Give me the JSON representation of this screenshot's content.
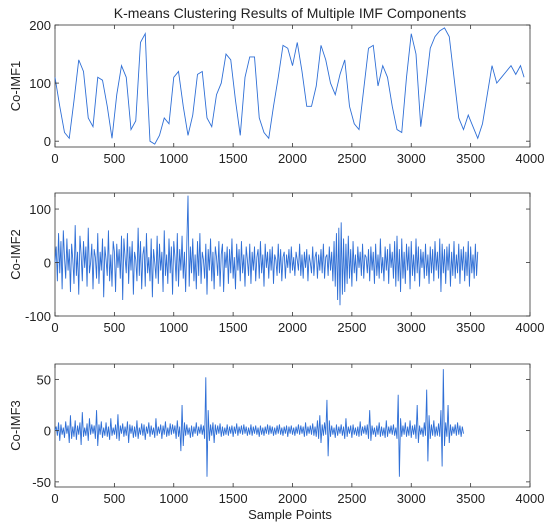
{
  "chart_data": [
    {
      "type": "line",
      "title": "K-means Clustering Results of Multiple IMF Components",
      "xlabel": "",
      "ylabel": "Co-IMF1",
      "xlim": [
        0,
        4000
      ],
      "ylim": [
        -10,
        200
      ],
      "xticks": [
        "0",
        "500",
        "1000",
        "1500",
        "2000",
        "2500",
        "3000",
        "3500",
        "4000"
      ],
      "yticks": [
        "0",
        "100",
        "200"
      ],
      "line_color": "#2f6fd6",
      "grid": false,
      "x": [
        0,
        40,
        80,
        120,
        160,
        200,
        240,
        280,
        320,
        360,
        400,
        440,
        480,
        520,
        560,
        600,
        640,
        680,
        720,
        760,
        780,
        800,
        840,
        880,
        920,
        960,
        1000,
        1040,
        1080,
        1120,
        1160,
        1200,
        1240,
        1280,
        1320,
        1360,
        1400,
        1440,
        1480,
        1520,
        1560,
        1600,
        1640,
        1680,
        1720,
        1760,
        1800,
        1840,
        1880,
        1920,
        1960,
        2000,
        2040,
        2080,
        2120,
        2160,
        2200,
        2240,
        2280,
        2320,
        2360,
        2400,
        2440,
        2480,
        2520,
        2560,
        2600,
        2640,
        2680,
        2720,
        2760,
        2800,
        2840,
        2880,
        2920,
        2960,
        3000,
        3040,
        3080,
        3120,
        3160,
        3200,
        3240,
        3280,
        3320,
        3360,
        3400,
        3440,
        3480,
        3520,
        3560,
        3600,
        3640,
        3680,
        3720,
        3760,
        3800,
        3840,
        3880,
        3920,
        3950
      ],
      "values": [
        110,
        60,
        15,
        5,
        70,
        140,
        120,
        40,
        25,
        110,
        105,
        60,
        5,
        80,
        130,
        110,
        20,
        35,
        170,
        185,
        80,
        0,
        -5,
        10,
        40,
        30,
        110,
        120,
        60,
        10,
        45,
        115,
        120,
        40,
        25,
        80,
        100,
        150,
        140,
        70,
        10,
        110,
        145,
        145,
        40,
        15,
        5,
        60,
        110,
        165,
        160,
        130,
        170,
        120,
        60,
        60,
        95,
        165,
        140,
        100,
        80,
        115,
        140,
        60,
        30,
        20,
        90,
        160,
        165,
        95,
        130,
        110,
        60,
        20,
        15,
        110,
        185,
        150,
        25,
        90,
        160,
        180,
        190,
        195,
        180,
        110,
        40,
        20,
        45,
        25,
        5,
        30,
        80,
        130,
        100,
        110,
        120,
        130,
        115,
        130,
        110
      ]
    },
    {
      "type": "line",
      "title": "",
      "xlabel": "",
      "ylabel": "Co-IMF2",
      "xlim": [
        0,
        4000
      ],
      "ylim": [
        -100,
        130
      ],
      "xticks": [
        "0",
        "500",
        "1000",
        "1500",
        "2000",
        "2500",
        "3000",
        "3500",
        "4000"
      ],
      "yticks": [
        "-100",
        "0",
        "100"
      ],
      "line_color": "#2f6fd6",
      "grid": false,
      "x_step": 10,
      "values": [
        0,
        30,
        -35,
        55,
        -20,
        40,
        -50,
        60,
        10,
        -30,
        45,
        -15,
        25,
        -55,
        35,
        5,
        -40,
        70,
        -25,
        20,
        -60,
        50,
        15,
        -35,
        40,
        -10,
        30,
        -45,
        65,
        -20,
        0,
        35,
        -50,
        25,
        10,
        -30,
        55,
        -40,
        20,
        -15,
        45,
        -65,
        30,
        5,
        -25,
        60,
        -35,
        15,
        -45,
        40,
        20,
        -55,
        35,
        -10,
        25,
        -30,
        50,
        -70,
        45,
        10,
        -20,
        55,
        -40,
        30,
        -15,
        40,
        -60,
        20,
        5,
        -35,
        65,
        -25,
        40,
        -50,
        15,
        30,
        -45,
        55,
        -20,
        10,
        -35,
        45,
        -65,
        25,
        0,
        -30,
        50,
        -40,
        35,
        -15,
        20,
        -55,
        60,
        -25,
        15,
        -40,
        45,
        -20,
        30,
        -60,
        40,
        10,
        -35,
        55,
        -45,
        25,
        -15,
        50,
        -30,
        20,
        -55,
        35,
        125,
        -45,
        30,
        -20,
        45,
        -35,
        15,
        -50,
        40,
        -25,
        55,
        -40,
        20,
        5,
        -30,
        35,
        -60,
        25,
        -15,
        45,
        -35,
        20,
        -50,
        30,
        10,
        -25,
        40,
        -45,
        15,
        35,
        -55,
        20,
        -10,
        30,
        -40,
        25,
        -20,
        45,
        -30,
        10,
        -50,
        35,
        -15,
        25,
        -35,
        40,
        -20,
        15,
        -45,
        30,
        5,
        -25,
        35,
        -40,
        20,
        -15,
        30,
        -35,
        10,
        25,
        -30,
        40,
        -20,
        15,
        -45,
        35,
        -10,
        20,
        -30,
        25,
        -15,
        30,
        -40,
        15,
        5,
        -25,
        35,
        -20,
        25,
        -35,
        10,
        20,
        -30,
        15,
        -10,
        25,
        -20,
        30,
        -15,
        10,
        -25,
        20,
        5,
        -15,
        35,
        -25,
        15,
        -30,
        20,
        -10,
        25,
        -35,
        15,
        0,
        -20,
        30,
        -25,
        10,
        20,
        -30,
        15,
        -15,
        25,
        -20,
        35,
        -30,
        10,
        15,
        -25,
        30,
        -15,
        20,
        -35,
        40,
        -45,
        55,
        -70,
        65,
        -80,
        75,
        -60,
        45,
        -55,
        35,
        -40,
        50,
        -30,
        25,
        -45,
        40,
        -20,
        15,
        -35,
        30,
        -10,
        20,
        -25,
        35,
        -30,
        15,
        10,
        -20,
        25,
        -35,
        30,
        -15,
        20,
        -40,
        35,
        -25,
        15,
        -30,
        45,
        -20,
        10,
        -35,
        30,
        -15,
        25,
        -40,
        35,
        -10,
        20,
        -30,
        40,
        -45,
        50,
        -35,
        25,
        -55,
        45,
        -30,
        20,
        -40,
        35,
        -15,
        30,
        -50,
        40,
        -25,
        15,
        -35,
        45,
        -20,
        30,
        -45,
        25,
        -10,
        20,
        -30,
        35,
        -25,
        15,
        -40,
        30,
        -20,
        25,
        -35,
        40,
        -15,
        20,
        -30,
        45,
        -55,
        35,
        -20,
        25,
        -40,
        30,
        -15,
        35,
        -45,
        20,
        -25,
        40,
        -30,
        15,
        -20,
        35,
        -40,
        25,
        -15,
        30,
        -35,
        20,
        -25,
        40,
        -45,
        30,
        -20,
        15,
        -30,
        35,
        -25,
        20
      ]
    },
    {
      "type": "line",
      "title": "",
      "xlabel": "Sample Points",
      "ylabel": "Co-IMF3",
      "xlim": [
        0,
        4000
      ],
      "ylim": [
        -55,
        65
      ],
      "xticks": [
        "0",
        "500",
        "1000",
        "1500",
        "2000",
        "2500",
        "3000",
        "3500",
        "4000"
      ],
      "yticks": [
        "-50",
        "0",
        "50"
      ],
      "line_color": "#2f6fd6",
      "grid": false,
      "x_step": 10,
      "values": [
        0,
        4,
        -5,
        8,
        -10,
        6,
        -4,
        3,
        -7,
        9,
        -3,
        5,
        -12,
        15,
        -8,
        4,
        -6,
        10,
        -9,
        5,
        -4,
        8,
        -14,
        18,
        -6,
        3,
        -5,
        7,
        -10,
        12,
        -4,
        6,
        -3,
        5,
        -8,
        20,
        -15,
        6,
        -4,
        9,
        -7,
        3,
        -5,
        8,
        -6,
        4,
        -9,
        12,
        -5,
        3,
        -4,
        6,
        -8,
        16,
        -10,
        5,
        -3,
        7,
        -6,
        4,
        -5,
        9,
        -12,
        6,
        -3,
        5,
        -7,
        4,
        -6,
        10,
        -8,
        3,
        -4,
        7,
        -5,
        6,
        -9,
        4,
        -3,
        8,
        -6,
        5,
        -4,
        3,
        -7,
        12,
        -5,
        4,
        -3,
        6,
        -8,
        5,
        -4,
        9,
        -6,
        3,
        -5,
        7,
        -4,
        6,
        -3,
        5,
        -8,
        10,
        -6,
        4,
        -20,
        25,
        -15,
        8,
        -5,
        6,
        -4,
        3,
        -7,
        5,
        -6,
        4,
        -3,
        8,
        -5,
        4,
        -3,
        6,
        -4,
        5,
        -8,
        52,
        -45,
        20,
        -10,
        6,
        -5,
        8,
        -12,
        6,
        -4,
        5,
        -3,
        7,
        -6,
        4,
        -5,
        3,
        -4,
        6,
        -5,
        4,
        -3,
        5,
        -6,
        4,
        -3,
        7,
        -5,
        4,
        -3,
        5,
        -4,
        6,
        -3,
        4,
        -5,
        3,
        -4,
        6,
        -5,
        4,
        -3,
        5,
        -4,
        3,
        -6,
        5,
        -4,
        3,
        -5,
        4,
        -3,
        6,
        -4,
        5,
        -3,
        4,
        -5,
        3,
        -4,
        5,
        -3,
        6,
        -4,
        3,
        -5,
        4,
        -3,
        5,
        -6,
        4,
        -3,
        5,
        -4,
        3,
        -5,
        4,
        -3,
        6,
        -4,
        5,
        -3,
        4,
        -6,
        8,
        -5,
        4,
        -3,
        5,
        -4,
        7,
        -5,
        4,
        -6,
        10,
        -8,
        15,
        -12,
        6,
        -5,
        8,
        -4,
        30,
        -25,
        10,
        -6,
        5,
        -4,
        3,
        -7,
        6,
        -5,
        4,
        -3,
        6,
        -5,
        4,
        -8,
        12,
        -6,
        4,
        -3,
        5,
        -7,
        6,
        -4,
        3,
        -5,
        4,
        -6,
        9,
        -5,
        4,
        -3,
        5,
        -4,
        6,
        -8,
        20,
        -10,
        5,
        -4,
        3,
        -6,
        5,
        -4,
        8,
        -6,
        4,
        -5,
        3,
        -7,
        10,
        -6,
        4,
        -3,
        5,
        -4,
        6,
        -5,
        3,
        -8,
        35,
        -45,
        12,
        -6,
        5,
        -4,
        8,
        -6,
        4,
        -5,
        10,
        -7,
        5,
        -4,
        6,
        -8,
        25,
        -12,
        5,
        -4,
        3,
        -6,
        8,
        -5,
        40,
        -30,
        15,
        -8,
        6,
        -5,
        10,
        -6,
        4,
        -5,
        7,
        -6,
        20,
        -35,
        60,
        -15,
        8,
        -6,
        25,
        -12,
        6,
        -5,
        4,
        -3,
        6,
        -5,
        8,
        -4,
        5,
        -6,
        4,
        -3
      ]
    }
  ]
}
